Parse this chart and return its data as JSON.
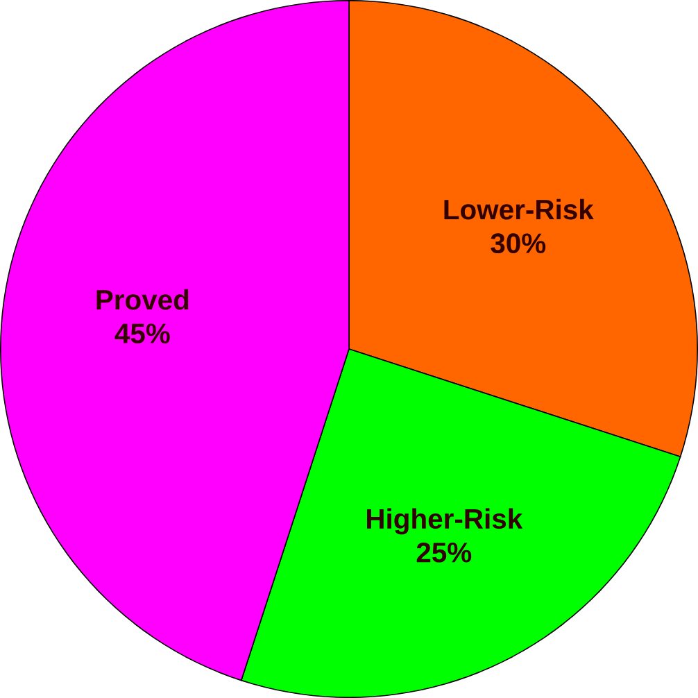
{
  "chart_data": {
    "type": "pie",
    "categories": [
      "Lower-Risk",
      "Higher-Risk",
      "Proved"
    ],
    "values": [
      30,
      25,
      45
    ],
    "value_labels": [
      "30%",
      "25%",
      "45%"
    ],
    "colors": [
      "#ff6600",
      "#00ff00",
      "#ff00ff"
    ]
  }
}
